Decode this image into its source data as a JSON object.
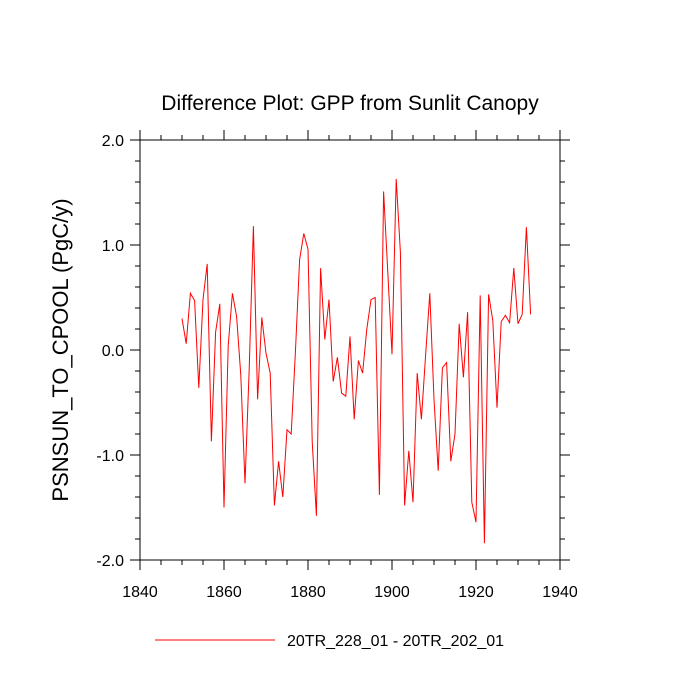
{
  "chart_data": {
    "type": "line",
    "title": "Difference Plot: GPP from Sunlit Canopy",
    "xlabel": "",
    "ylabel": "PSNSUN_TO_CPOOL  (PgC/y)",
    "xlim": [
      1840,
      1940
    ],
    "ylim": [
      -2.0,
      2.0
    ],
    "x_ticks": [
      1840,
      1860,
      1880,
      1900,
      1920,
      1940
    ],
    "y_ticks": [
      -2.0,
      -1.0,
      0.0,
      1.0,
      2.0
    ],
    "y_tick_labels": [
      "-2.0",
      "-1.0",
      "0.0",
      "1.0",
      "2.0"
    ],
    "legend_position": "bottom",
    "series": [
      {
        "name": "20TR_228_01 - 20TR_202_01",
        "color": "#ff0000",
        "x": [
          1850,
          1851,
          1852,
          1853,
          1854,
          1855,
          1856,
          1857,
          1858,
          1859,
          1860,
          1861,
          1862,
          1863,
          1864,
          1865,
          1866,
          1867,
          1868,
          1869,
          1870,
          1871,
          1872,
          1873,
          1874,
          1875,
          1876,
          1877,
          1878,
          1879,
          1880,
          1881,
          1882,
          1883,
          1884,
          1885,
          1886,
          1887,
          1888,
          1889,
          1890,
          1891,
          1892,
          1893,
          1894,
          1895,
          1896,
          1897,
          1898,
          1899,
          1900,
          1901,
          1902,
          1903,
          1904,
          1905,
          1906,
          1907,
          1908,
          1909,
          1910,
          1911,
          1912,
          1913,
          1914,
          1915,
          1916,
          1917,
          1918,
          1919,
          1920,
          1921,
          1922,
          1923,
          1924,
          1925,
          1926,
          1927,
          1928,
          1929,
          1930,
          1931,
          1932,
          1933
        ],
        "values": [
          0.3,
          0.06,
          0.54,
          0.47,
          -0.36,
          0.48,
          0.82,
          -0.87,
          0.17,
          0.44,
          -1.5,
          0.04,
          0.54,
          0.32,
          -0.24,
          -1.27,
          -0.18,
          1.18,
          -0.47,
          0.31,
          -0.03,
          -0.22,
          -1.48,
          -1.06,
          -1.4,
          -0.76,
          -0.8,
          -0.02,
          0.86,
          1.11,
          0.96,
          -0.87,
          -1.58,
          0.78,
          0.1,
          0.48,
          -0.3,
          -0.07,
          -0.41,
          -0.44,
          0.13,
          -0.66,
          -0.1,
          -0.22,
          0.2,
          0.48,
          0.5,
          -1.38,
          1.51,
          0.74,
          -0.04,
          1.63,
          0.93,
          -1.48,
          -0.96,
          -1.45,
          -0.22,
          -0.66,
          -0.05,
          0.54,
          -0.47,
          -1.15,
          -0.17,
          -0.12,
          -1.06,
          -0.8,
          0.25,
          -0.26,
          0.36,
          -1.45,
          -1.64,
          0.52,
          -1.84,
          0.53,
          0.28,
          -0.55,
          0.27,
          0.33,
          0.26,
          0.78,
          0.25,
          0.34,
          1.17,
          0.34
        ]
      }
    ]
  }
}
